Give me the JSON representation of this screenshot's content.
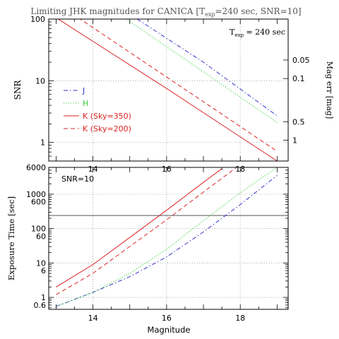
{
  "figure": {
    "title": {
      "prefix": "Limiting JHK magnitudes for CANICA [T",
      "sub": "exp",
      "suffix": "=240 sec, SNR=10]"
    },
    "xlabel": "Magnitude"
  },
  "chart_data": [
    {
      "type": "line",
      "panel": "top",
      "ylabel": "SNR",
      "y2label": "Mag err [mag]",
      "yscale": "log",
      "xlim": [
        12.8,
        19.3
      ],
      "ylim": [
        0.5,
        100
      ],
      "x_ticks": [
        14,
        16,
        18
      ],
      "y_ticks": [
        1,
        10,
        100
      ],
      "y2_ticks": [
        {
          "label": "0.05",
          "snr": 21.7
        },
        {
          "label": "0.1",
          "snr": 10.86
        },
        {
          "label": "0.5",
          "snr": 2.17
        },
        {
          "label": "1",
          "snr": 1.086
        }
      ],
      "grid": true,
      "legend_position": "left",
      "annotation": {
        "prefix": "T",
        "sub": "exp",
        "suffix": " = 240 sec"
      },
      "series": [
        {
          "name": "J",
          "color": "#3333cc",
          "dash": "6 3 1.5 3",
          "x": [
            15.2,
            17.0,
            19.0
          ],
          "y": [
            100,
            20,
            2.7
          ]
        },
        {
          "name": "H",
          "color": "#33cc33",
          "dash": "1.2 2.2",
          "x": [
            14.9,
            17.0,
            19.0
          ],
          "y": [
            100,
            14,
            2.1
          ]
        },
        {
          "name": "K (Sky=350)",
          "color": "#dd2222",
          "dash": "",
          "x": [
            13.0,
            16.0,
            19.0
          ],
          "y": [
            105,
            7.5,
            0.5
          ]
        },
        {
          "name": "K (Sky=200)",
          "color": "#dd2222",
          "dash": "6 4",
          "x": [
            13.6,
            16.0,
            19.0
          ],
          "y": [
            105,
            11.5,
            0.72
          ]
        }
      ]
    },
    {
      "type": "line",
      "panel": "bottom",
      "ylabel": "Exposure Time [sec]",
      "yscale": "log",
      "xlim": [
        12.8,
        19.3
      ],
      "ylim": [
        0.45,
        6000
      ],
      "x_ticks": [
        14,
        16,
        18
      ],
      "y_ticks": [
        0.6,
        1,
        6,
        10,
        60,
        100,
        600,
        1000,
        6000
      ],
      "grid": true,
      "annotation": {
        "text": "SNR=10"
      },
      "reference_line": 240,
      "series": [
        {
          "name": "J",
          "color": "#3333cc",
          "dash": "6 3 1.5 3",
          "x": [
            13.0,
            14.0,
            15.0,
            16.0,
            17.0,
            18.0,
            19.0
          ],
          "y": [
            0.55,
            1.4,
            4.0,
            15,
            80,
            500,
            3500
          ]
        },
        {
          "name": "H",
          "color": "#33cc33",
          "dash": "1.2 2.2",
          "x": [
            13.0,
            14.0,
            15.0,
            16.0,
            17.0,
            18.0,
            19.0
          ],
          "y": [
            0.55,
            1.4,
            5.0,
            25,
            170,
            1100,
            6000
          ]
        },
        {
          "name": "K (Sky=350)",
          "color": "#dd2222",
          "dash": "",
          "x": [
            13.0,
            14.0,
            15.0,
            16.0,
            17.0,
            17.5
          ],
          "y": [
            2.0,
            9,
            55,
            340,
            2200,
            5500
          ]
        },
        {
          "name": "K (Sky=200)",
          "color": "#dd2222",
          "dash": "6 4",
          "x": [
            13.0,
            14.0,
            15.0,
            16.0,
            17.0,
            17.9
          ],
          "y": [
            1.2,
            5,
            30,
            180,
            1150,
            6000
          ]
        }
      ]
    }
  ]
}
